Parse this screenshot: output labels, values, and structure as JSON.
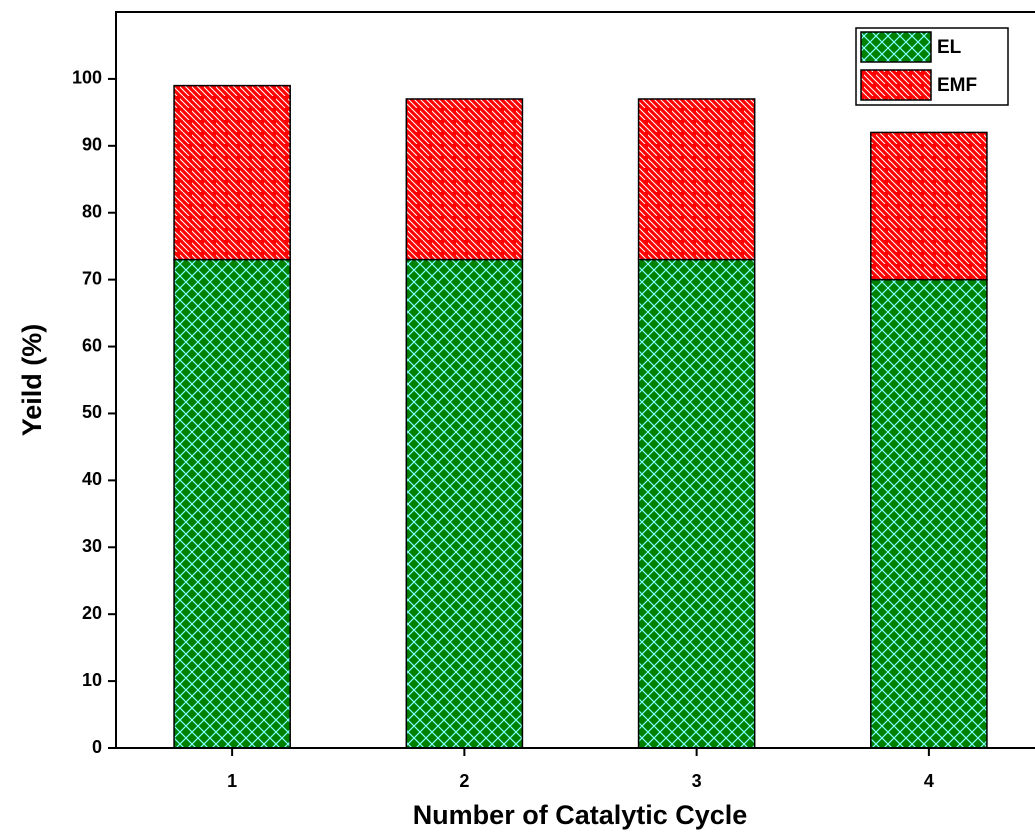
{
  "chart_data": {
    "type": "stacked_bar",
    "x_label": "Number of Catalytic Cycle",
    "y_label": "Yeild (%)",
    "categories": [
      "1",
      "2",
      "3",
      "4"
    ],
    "series": [
      {
        "name": "EL",
        "color": "#008000",
        "values": [
          73,
          73,
          73,
          70
        ]
      },
      {
        "name": "EMF",
        "color": "#ff0000",
        "values": [
          26,
          24,
          24,
          22
        ]
      }
    ],
    "ylim": [
      0,
      110
    ],
    "yticks": [
      0,
      10,
      20,
      30,
      40,
      50,
      60,
      70,
      80,
      90,
      100
    ],
    "legend": "top-right"
  }
}
